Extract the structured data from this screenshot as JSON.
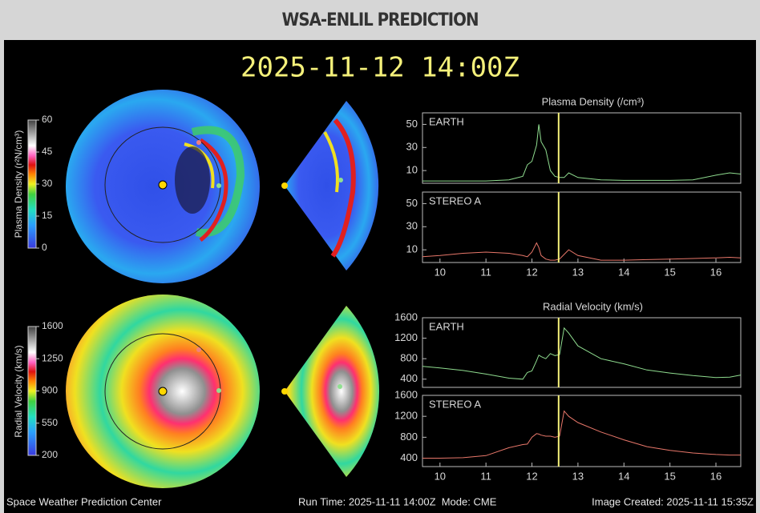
{
  "header": {
    "title": "WSA-ENLIL PREDICTION"
  },
  "timestamp": "2025-11-12 14:00Z",
  "colorbars": [
    {
      "label": "Plasma Density (r²N/cm³)",
      "ticks": [
        0,
        15,
        30,
        45,
        60
      ]
    },
    {
      "label": "Radial Velocity (km/s)",
      "ticks": [
        200,
        550,
        900,
        1250,
        1600
      ]
    }
  ],
  "chart_data": [
    {
      "type": "line",
      "title": "Plasma Density (/cm³)",
      "x": [
        9.62,
        10,
        10.5,
        11,
        11.5,
        11.8,
        11.9,
        12.0,
        12.1,
        12.15,
        12.2,
        12.3,
        12.4,
        12.5,
        12.6,
        12.7,
        12.8,
        13,
        13.5,
        14,
        14.5,
        15,
        15.5,
        16,
        16.3,
        16.54
      ],
      "series": [
        {
          "name": "EARTH",
          "color": "#8fdc8f",
          "values": [
            1,
            1,
            1,
            1,
            2,
            5,
            15,
            18,
            32,
            50,
            35,
            28,
            10,
            5,
            4,
            4,
            8,
            4,
            2,
            1.5,
            1.5,
            1.5,
            2,
            6,
            8,
            7
          ]
        }
      ],
      "xlim": [
        9.62,
        16.54
      ],
      "ylim": [
        -1,
        60
      ],
      "yticks": [
        10,
        30,
        50
      ],
      "current_time": 12.58
    },
    {
      "type": "line",
      "x": [
        9.62,
        10,
        10.5,
        11,
        11.5,
        11.8,
        11.9,
        12.0,
        12.1,
        12.15,
        12.2,
        12.3,
        12.4,
        12.5,
        12.6,
        12.7,
        12.8,
        13,
        13.5,
        14,
        14.5,
        15,
        15.5,
        16,
        16.3,
        16.54
      ],
      "series": [
        {
          "name": "STEREO A",
          "color": "#e8776a",
          "values": [
            4,
            5,
            7,
            8,
            7,
            5,
            4,
            8,
            16,
            12,
            5,
            2,
            1,
            1,
            2,
            6,
            10,
            5,
            1,
            1,
            1.5,
            2,
            2.5,
            3,
            3.5,
            3
          ]
        }
      ],
      "xlim": [
        9.62,
        16.54
      ],
      "xticks": [
        10,
        11,
        12,
        13,
        14,
        15,
        16
      ],
      "ylim": [
        -1,
        60
      ],
      "yticks": [
        10,
        30,
        50
      ],
      "current_time": 12.58
    },
    {
      "type": "line",
      "title": "Radial Velocity (km/s)",
      "x": [
        9.62,
        10,
        10.5,
        11,
        11.5,
        11.8,
        11.9,
        12.0,
        12.1,
        12.15,
        12.2,
        12.3,
        12.4,
        12.5,
        12.6,
        12.7,
        12.8,
        13,
        13.5,
        14,
        14.5,
        15,
        15.5,
        16,
        16.3,
        16.54
      ],
      "series": [
        {
          "name": "EARTH",
          "color": "#8fdc8f",
          "values": [
            650,
            620,
            570,
            500,
            420,
            400,
            530,
            560,
            760,
            870,
            840,
            800,
            900,
            860,
            880,
            1400,
            1300,
            1050,
            800,
            700,
            580,
            520,
            470,
            430,
            440,
            480
          ]
        }
      ],
      "xlim": [
        9.62,
        16.54
      ],
      "ylim": [
        240,
        1600
      ],
      "yticks": [
        400,
        800,
        1200,
        1600
      ],
      "current_time": 12.58
    },
    {
      "type": "line",
      "x": [
        9.62,
        10,
        10.5,
        11,
        11.5,
        11.8,
        11.9,
        12.0,
        12.1,
        12.15,
        12.2,
        12.3,
        12.4,
        12.5,
        12.6,
        12.7,
        12.8,
        13,
        13.5,
        14,
        14.5,
        15,
        15.5,
        16,
        16.3,
        16.54
      ],
      "series": [
        {
          "name": "STEREO A",
          "color": "#e8776a",
          "values": [
            400,
            400,
            410,
            450,
            600,
            660,
            670,
            800,
            870,
            860,
            840,
            820,
            820,
            800,
            820,
            1300,
            1200,
            1080,
            900,
            750,
            620,
            550,
            500,
            470,
            460,
            460
          ]
        }
      ],
      "xlim": [
        9.62,
        16.54
      ],
      "xticks": [
        10,
        11,
        12,
        13,
        14,
        15,
        16
      ],
      "ylim": [
        240,
        1600
      ],
      "yticks": [
        400,
        800,
        1200,
        1600
      ],
      "current_time": 12.58
    }
  ],
  "footer": {
    "left": "Space Weather Prediction Center",
    "middle": "Run Time: 2025-11-11 14:00Z  Mode: CME",
    "right": "Image Created: 2025-11-11 15:35Z"
  }
}
